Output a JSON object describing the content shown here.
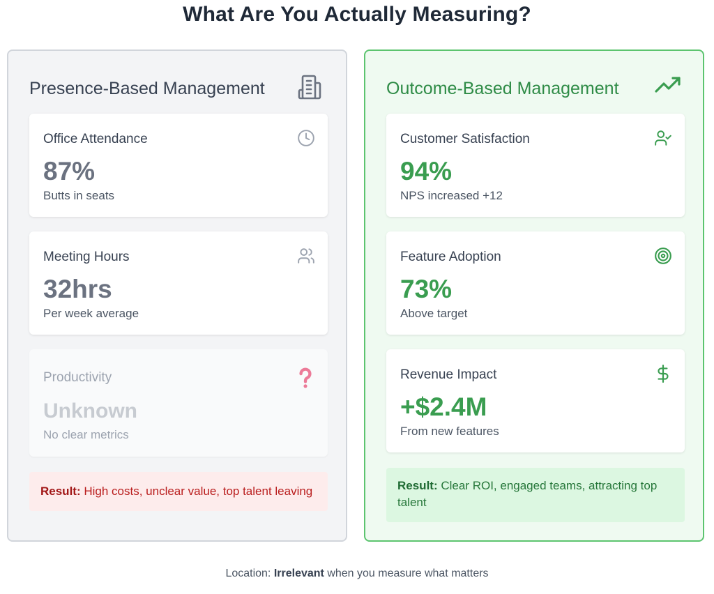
{
  "title": "What Are You Actually Measuring?",
  "left_panel": {
    "title": "Presence-Based Management",
    "icon": "office-building-icon",
    "cards": [
      {
        "label": "Office Attendance",
        "value": "87%",
        "sub": "Butts in seats",
        "icon": "clock-icon"
      },
      {
        "label": "Meeting Hours",
        "value": "32hrs",
        "sub": "Per week average",
        "icon": "users-icon"
      },
      {
        "label": "Productivity",
        "value": "Unknown",
        "sub": "No clear metrics",
        "icon": "question-icon"
      }
    ],
    "result_label": "Result:",
    "result_text": " High costs, unclear value, top talent leaving"
  },
  "right_panel": {
    "title": "Outcome-Based Management",
    "icon": "trending-up-icon",
    "cards": [
      {
        "label": "Customer Satisfaction",
        "value": "94%",
        "sub": "NPS increased +12",
        "icon": "user-check-icon"
      },
      {
        "label": "Feature Adoption",
        "value": "73%",
        "sub": "Above target",
        "icon": "target-icon"
      },
      {
        "label": "Revenue Impact",
        "value": "+$2.4M",
        "sub": "From new features",
        "icon": "dollar-icon"
      }
    ],
    "result_label": "Result:",
    "result_text": " Clear ROI, engaged teams, attracting top talent"
  },
  "footer": {
    "prefix": "Location: ",
    "emphasis": "Irrelevant",
    "suffix": " when you measure what matters"
  },
  "colors": {
    "presence_accent": "#6b7280",
    "outcome_accent": "#3a9d50",
    "bad_result": "#b91c1c",
    "good_result": "#26773a"
  }
}
